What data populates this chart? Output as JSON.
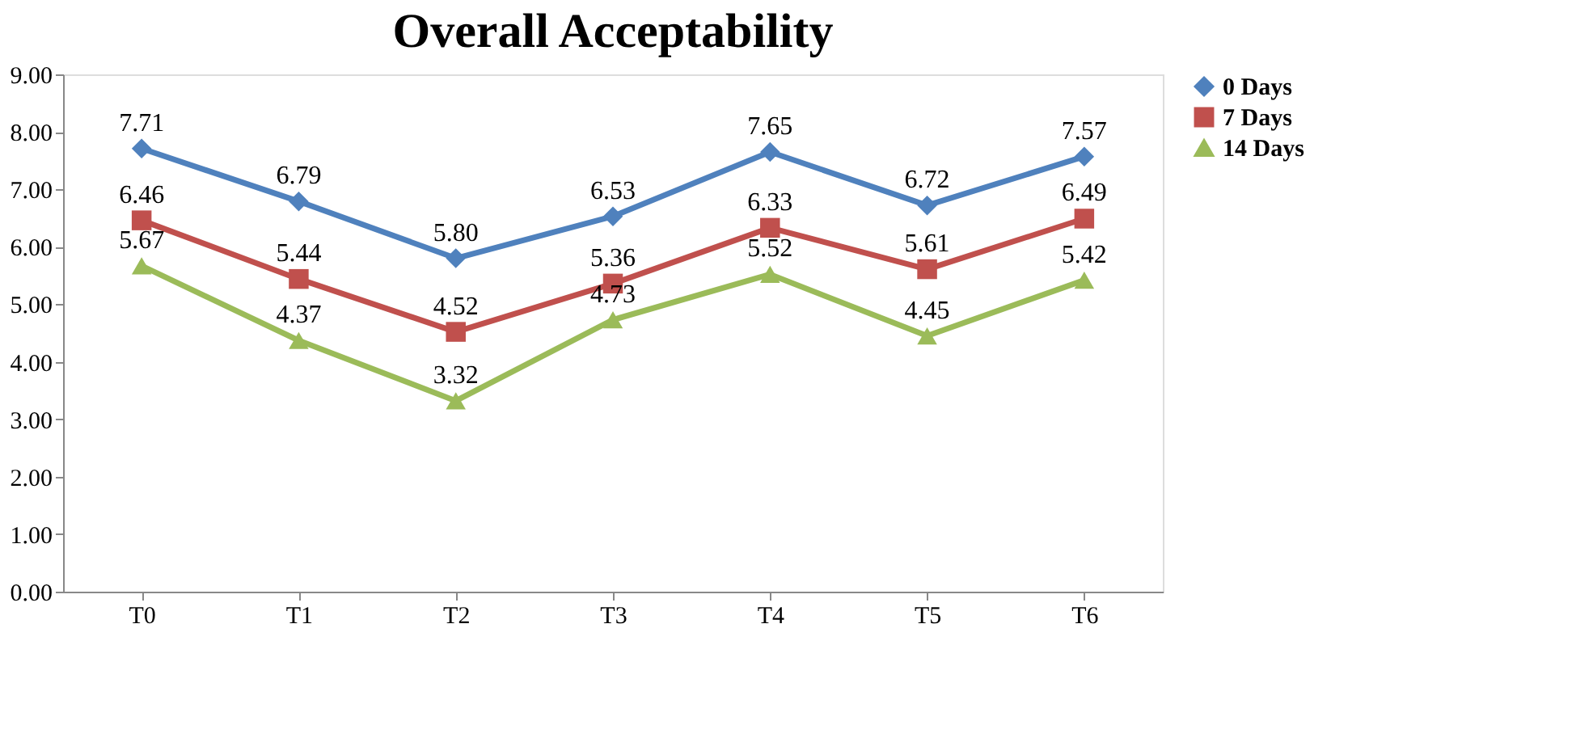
{
  "chart_data": {
    "type": "line",
    "title": "Overall Acceptability",
    "categories": [
      "T0",
      "T1",
      "T2",
      "T3",
      "T4",
      "T5",
      "T6"
    ],
    "series": [
      {
        "name": "0 Days",
        "color": "#4f81bd",
        "marker": "diamond",
        "values": [
          7.71,
          6.79,
          5.8,
          6.53,
          7.65,
          6.72,
          7.57
        ],
        "value_labels": [
          "7.71",
          "6.79",
          "5.80",
          "6.53",
          "7.65",
          "6.72",
          "7.57"
        ]
      },
      {
        "name": "7 Days",
        "color": "#c0504d",
        "marker": "square",
        "values": [
          6.46,
          5.44,
          4.52,
          5.36,
          6.33,
          5.61,
          6.49
        ],
        "value_labels": [
          "6.46",
          "5.44",
          "4.52",
          "5.36",
          "6.33",
          "5.61",
          "6.49"
        ]
      },
      {
        "name": "14 Days",
        "color": "#9bbb59",
        "marker": "triangle",
        "values": [
          5.67,
          4.37,
          3.32,
          4.73,
          5.52,
          4.45,
          5.42
        ],
        "value_labels": [
          "5.67",
          "4.37",
          "3.32",
          "4.73",
          "5.52",
          "4.45",
          "5.42"
        ]
      }
    ],
    "ylim": [
      0,
      9
    ],
    "yticks": [
      {
        "value": 0,
        "label": "0.00"
      },
      {
        "value": 1,
        "label": "1.00"
      },
      {
        "value": 2,
        "label": "2.00"
      },
      {
        "value": 3,
        "label": "3.00"
      },
      {
        "value": 4,
        "label": "4.00"
      },
      {
        "value": 5,
        "label": "5.00"
      },
      {
        "value": 6,
        "label": "6.00"
      },
      {
        "value": 7,
        "label": "7.00"
      },
      {
        "value": 8,
        "label": "8.00"
      },
      {
        "value": 9,
        "label": "9.00"
      }
    ],
    "grid": false,
    "legend": "right",
    "line_style": "solid"
  }
}
